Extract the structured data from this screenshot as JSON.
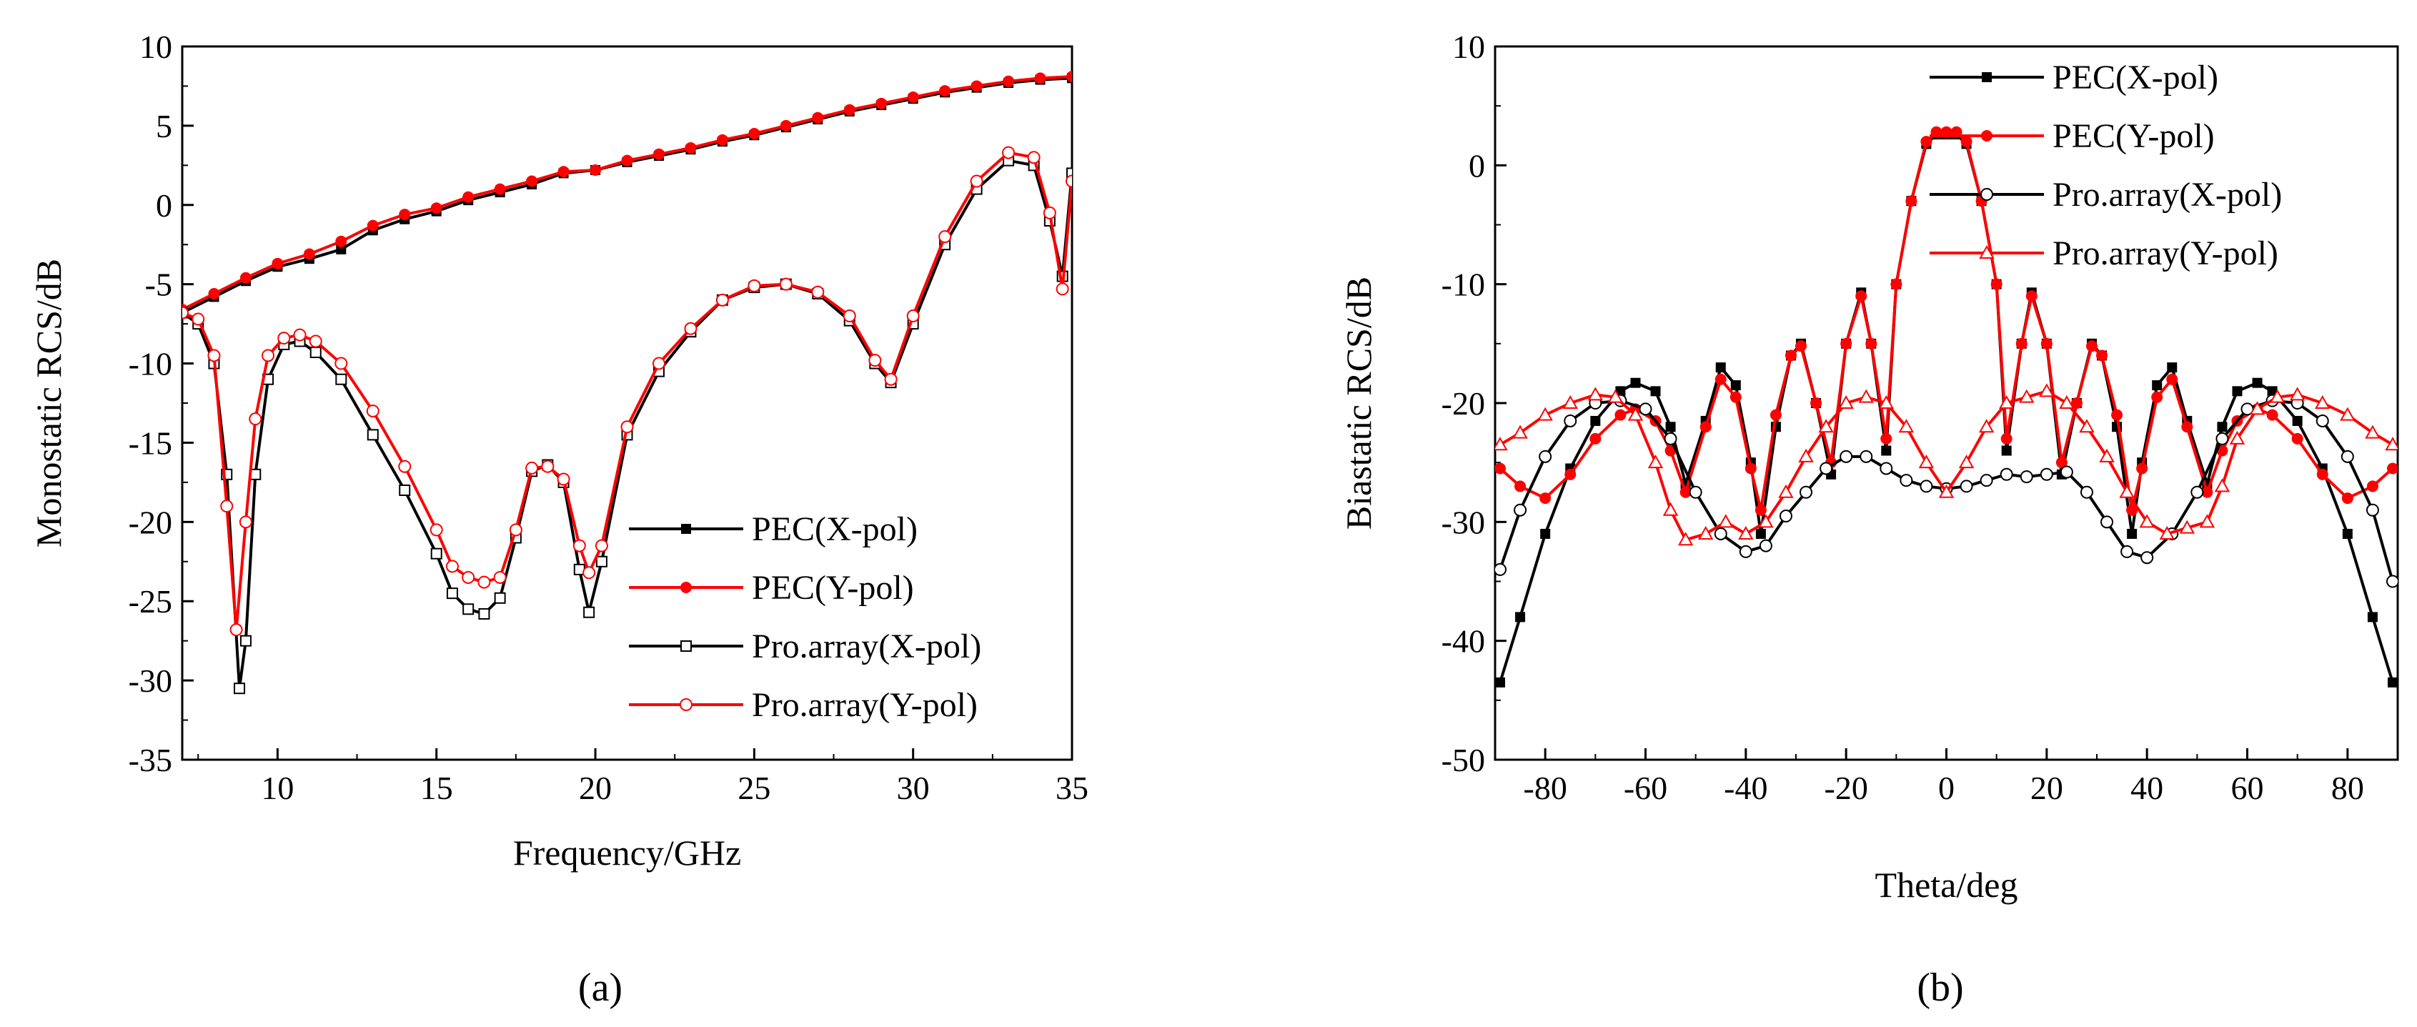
{
  "figure": {
    "captions": [
      "(a)",
      "(b)"
    ]
  },
  "chart_data": [
    {
      "type": "line",
      "caption": "(a)",
      "xlabel": "Frequency/GHz",
      "ylabel": "Monostatic RCS/dB",
      "xlim": [
        7,
        35
      ],
      "ylim": [
        -35,
        10
      ],
      "xticks": [
        "10",
        "15",
        "20",
        "25",
        "30",
        "35"
      ],
      "yticks": [
        "-35",
        "-30",
        "-25",
        "-20",
        "-15",
        "-10",
        "-5",
        "0",
        "5",
        "10"
      ],
      "legend_position": "lower-right",
      "grid": false,
      "series": [
        {
          "name": "PEC(X-pol)",
          "color": "#000000",
          "marker": "filled-square",
          "x": [
            7,
            8,
            9,
            10,
            11,
            12,
            13,
            14,
            15,
            16,
            17,
            18,
            19,
            20,
            21,
            22,
            23,
            24,
            25,
            26,
            27,
            28,
            29,
            30,
            31,
            32,
            33,
            34,
            35
          ],
          "y": [
            -6.8,
            -5.8,
            -4.8,
            -3.9,
            -3.4,
            -2.8,
            -1.6,
            -0.9,
            -0.4,
            0.3,
            0.8,
            1.3,
            2.0,
            2.2,
            2.7,
            3.1,
            3.5,
            4.0,
            4.4,
            4.9,
            5.4,
            5.9,
            6.3,
            6.7,
            7.1,
            7.4,
            7.7,
            7.9,
            8.0
          ]
        },
        {
          "name": "PEC(Y-pol)",
          "color": "#ff0000",
          "marker": "filled-circle",
          "x": [
            7,
            8,
            9,
            10,
            11,
            12,
            13,
            14,
            15,
            16,
            17,
            18,
            19,
            20,
            21,
            22,
            23,
            24,
            25,
            26,
            27,
            28,
            29,
            30,
            31,
            32,
            33,
            34,
            35
          ],
          "y": [
            -6.6,
            -5.6,
            -4.6,
            -3.7,
            -3.1,
            -2.3,
            -1.3,
            -0.6,
            -0.2,
            0.5,
            1.0,
            1.5,
            2.1,
            2.2,
            2.8,
            3.2,
            3.6,
            4.1,
            4.5,
            5.0,
            5.5,
            6.0,
            6.4,
            6.8,
            7.2,
            7.5,
            7.8,
            8.0,
            8.1
          ]
        },
        {
          "name": "Pro.array(X-pol)",
          "color": "#000000",
          "marker": "open-square",
          "x": [
            7,
            7.5,
            8,
            8.4,
            8.8,
            9.0,
            9.3,
            9.7,
            10.2,
            10.7,
            11.2,
            12,
            13,
            14,
            15,
            15.5,
            16,
            16.5,
            17,
            17.5,
            18,
            18.5,
            19,
            19.5,
            19.8,
            20.2,
            21,
            22,
            23,
            24,
            25,
            26,
            27,
            28,
            28.8,
            29.3,
            30,
            31,
            32,
            33,
            33.8,
            34.3,
            34.7,
            35
          ],
          "y": [
            -6.8,
            -7.5,
            -10,
            -17,
            -30.5,
            -27.5,
            -17,
            -11,
            -8.8,
            -8.6,
            -9.3,
            -11,
            -14.5,
            -18,
            -22,
            -24.5,
            -25.5,
            -25.8,
            -24.8,
            -21,
            -16.8,
            -16.4,
            -17.5,
            -23,
            -25.7,
            -22.5,
            -14.5,
            -10.5,
            -8,
            -6,
            -5.2,
            -5,
            -5.6,
            -7.3,
            -10,
            -11.2,
            -7.5,
            -2.5,
            1.0,
            2.8,
            2.5,
            -1.0,
            -4.5,
            2.0
          ]
        },
        {
          "name": "Pro.array(Y-pol)",
          "color": "#ff0000",
          "marker": "open-circle",
          "x": [
            7,
            7.5,
            8,
            8.4,
            8.7,
            9.0,
            9.3,
            9.7,
            10.2,
            10.7,
            11.2,
            12,
            13,
            14,
            15,
            15.5,
            16,
            16.5,
            17,
            17.5,
            18,
            18.5,
            19,
            19.5,
            19.8,
            20.2,
            21,
            22,
            23,
            24,
            25,
            26,
            27,
            28,
            28.8,
            29.3,
            30,
            31,
            32,
            33,
            33.8,
            34.3,
            34.7,
            35
          ],
          "y": [
            -6.8,
            -7.2,
            -9.5,
            -19,
            -26.8,
            -20,
            -13.5,
            -9.5,
            -8.4,
            -8.2,
            -8.6,
            -10,
            -13,
            -16.5,
            -20.5,
            -22.8,
            -23.5,
            -23.8,
            -23.5,
            -20.5,
            -16.6,
            -16.5,
            -17.3,
            -21.5,
            -23.2,
            -21.5,
            -14,
            -10,
            -7.8,
            -6,
            -5.1,
            -5,
            -5.5,
            -7,
            -9.8,
            -11,
            -7,
            -2,
            1.5,
            3.3,
            3.0,
            -0.5,
            -5.3,
            1.5
          ]
        }
      ]
    },
    {
      "type": "line",
      "caption": "(b)",
      "xlabel": "Theta/deg",
      "ylabel": "Biastatic RCS/dB",
      "xlim": [
        -90,
        90
      ],
      "ylim": [
        -50,
        10
      ],
      "xticks": [
        "-80",
        "-60",
        "-40",
        "-20",
        "0",
        "20",
        "40",
        "60",
        "80"
      ],
      "yticks": [
        "-50",
        "-40",
        "-30",
        "-20",
        "-10",
        "0",
        "10"
      ],
      "legend_position": "top-right",
      "grid": false,
      "series": [
        {
          "name": "PEC(X-pol)",
          "color": "#000000",
          "marker": "filled-square",
          "x": [
            -89,
            -85,
            -80,
            -75,
            -70,
            -65,
            -62,
            -58,
            -55,
            -52,
            -48,
            -45,
            -42,
            -39,
            -37,
            -34,
            -31,
            -29,
            -26,
            -23,
            -20,
            -17,
            -15,
            -12,
            -10,
            -7,
            -4,
            -2,
            0,
            2,
            4,
            7,
            10,
            12,
            15,
            17,
            20,
            23,
            26,
            29,
            31,
            34,
            37,
            39,
            42,
            45,
            48,
            52,
            55,
            58,
            62,
            65,
            70,
            75,
            80,
            85,
            89
          ],
          "y": [
            -43.5,
            -38,
            -31,
            -25.5,
            -21.5,
            -19,
            -18.3,
            -19,
            -22,
            -26.8,
            -21.5,
            -17,
            -18.5,
            -25,
            -31,
            -22,
            -16,
            -15,
            -20,
            -26,
            -15,
            -10.7,
            -15,
            -24,
            -10,
            -3,
            1.8,
            2.6,
            2.6,
            2.6,
            1.8,
            -3,
            -10,
            -24,
            -15,
            -10.7,
            -15,
            -26,
            -20,
            -15,
            -16,
            -22,
            -31,
            -25,
            -18.5,
            -17,
            -21.5,
            -26.8,
            -22,
            -19,
            -18.3,
            -19,
            -21.5,
            -25.5,
            -31,
            -38,
            -43.5
          ]
        },
        {
          "name": "PEC(Y-pol)",
          "color": "#ff0000",
          "marker": "filled-circle",
          "x": [
            -89,
            -85,
            -80,
            -75,
            -70,
            -65,
            -62,
            -58,
            -55,
            -52,
            -48,
            -45,
            -42,
            -39,
            -37,
            -34,
            -31,
            -29,
            -26,
            -23,
            -20,
            -17,
            -15,
            -12,
            -10,
            -7,
            -4,
            -2,
            0,
            2,
            4,
            7,
            10,
            12,
            15,
            17,
            20,
            23,
            26,
            29,
            31,
            34,
            37,
            39,
            42,
            45,
            48,
            52,
            55,
            58,
            62,
            65,
            70,
            75,
            80,
            85,
            89
          ],
          "y": [
            -25.5,
            -27,
            -28,
            -26,
            -23,
            -21,
            -20.5,
            -21.5,
            -24,
            -27.5,
            -22,
            -18,
            -19.5,
            -25.5,
            -29,
            -21,
            -16,
            -15.2,
            -20,
            -25,
            -15,
            -11,
            -15,
            -23,
            -10,
            -3,
            2,
            2.8,
            2.8,
            2.8,
            2,
            -3,
            -10,
            -23,
            -15,
            -11,
            -15,
            -25,
            -20,
            -15.2,
            -16,
            -21,
            -29,
            -25.5,
            -19.5,
            -18,
            -22,
            -27.5,
            -24,
            -21.5,
            -20.5,
            -21,
            -23,
            -26,
            -28,
            -27,
            -25.5
          ]
        },
        {
          "name": "Pro.array(X-pol)",
          "color": "#000000",
          "marker": "open-circle",
          "x": [
            -89,
            -85,
            -80,
            -75,
            -70,
            -65,
            -60,
            -55,
            -50,
            -45,
            -40,
            -36,
            -32,
            -28,
            -24,
            -20,
            -16,
            -12,
            -8,
            -4,
            0,
            4,
            8,
            12,
            16,
            20,
            24,
            28,
            32,
            36,
            40,
            45,
            50,
            55,
            60,
            65,
            70,
            75,
            80,
            85,
            89
          ],
          "y": [
            -34,
            -29,
            -24.5,
            -21.5,
            -20,
            -19.8,
            -20.5,
            -23,
            -27.5,
            -31,
            -32.5,
            -32,
            -29.5,
            -27.5,
            -25.5,
            -24.5,
            -24.5,
            -25.5,
            -26.5,
            -27,
            -27.2,
            -27,
            -26.5,
            -26,
            -26.2,
            -26,
            -25.8,
            -27.5,
            -30,
            -32.5,
            -33,
            -31,
            -27.5,
            -23,
            -20.5,
            -19.8,
            -20,
            -21.5,
            -24.5,
            -29,
            -35
          ]
        },
        {
          "name": "Pro.array(Y-pol)",
          "color": "#ff0000",
          "marker": "open-triangle",
          "x": [
            -89,
            -85,
            -80,
            -75,
            -70,
            -66,
            -62,
            -58,
            -55,
            -52,
            -48,
            -44,
            -40,
            -36,
            -32,
            -28,
            -24,
            -20,
            -16,
            -12,
            -8,
            -4,
            0,
            4,
            8,
            12,
            16,
            20,
            24,
            28,
            32,
            36,
            40,
            44,
            48,
            52,
            55,
            58,
            62,
            66,
            70,
            75,
            80,
            85,
            89
          ],
          "y": [
            -23.5,
            -22.5,
            -21,
            -20,
            -19.3,
            -19.5,
            -21,
            -25,
            -29,
            -31.5,
            -31,
            -30,
            -31,
            -30,
            -27.5,
            -24.5,
            -22,
            -20,
            -19.5,
            -20,
            -22,
            -25,
            -27.5,
            -25,
            -22,
            -20,
            -19.5,
            -19,
            -20,
            -22,
            -24.5,
            -27.5,
            -30,
            -31,
            -30.5,
            -30,
            -27,
            -23,
            -20.5,
            -19.5,
            -19.3,
            -20,
            -21,
            -22.5,
            -23.5
          ]
        }
      ]
    }
  ]
}
